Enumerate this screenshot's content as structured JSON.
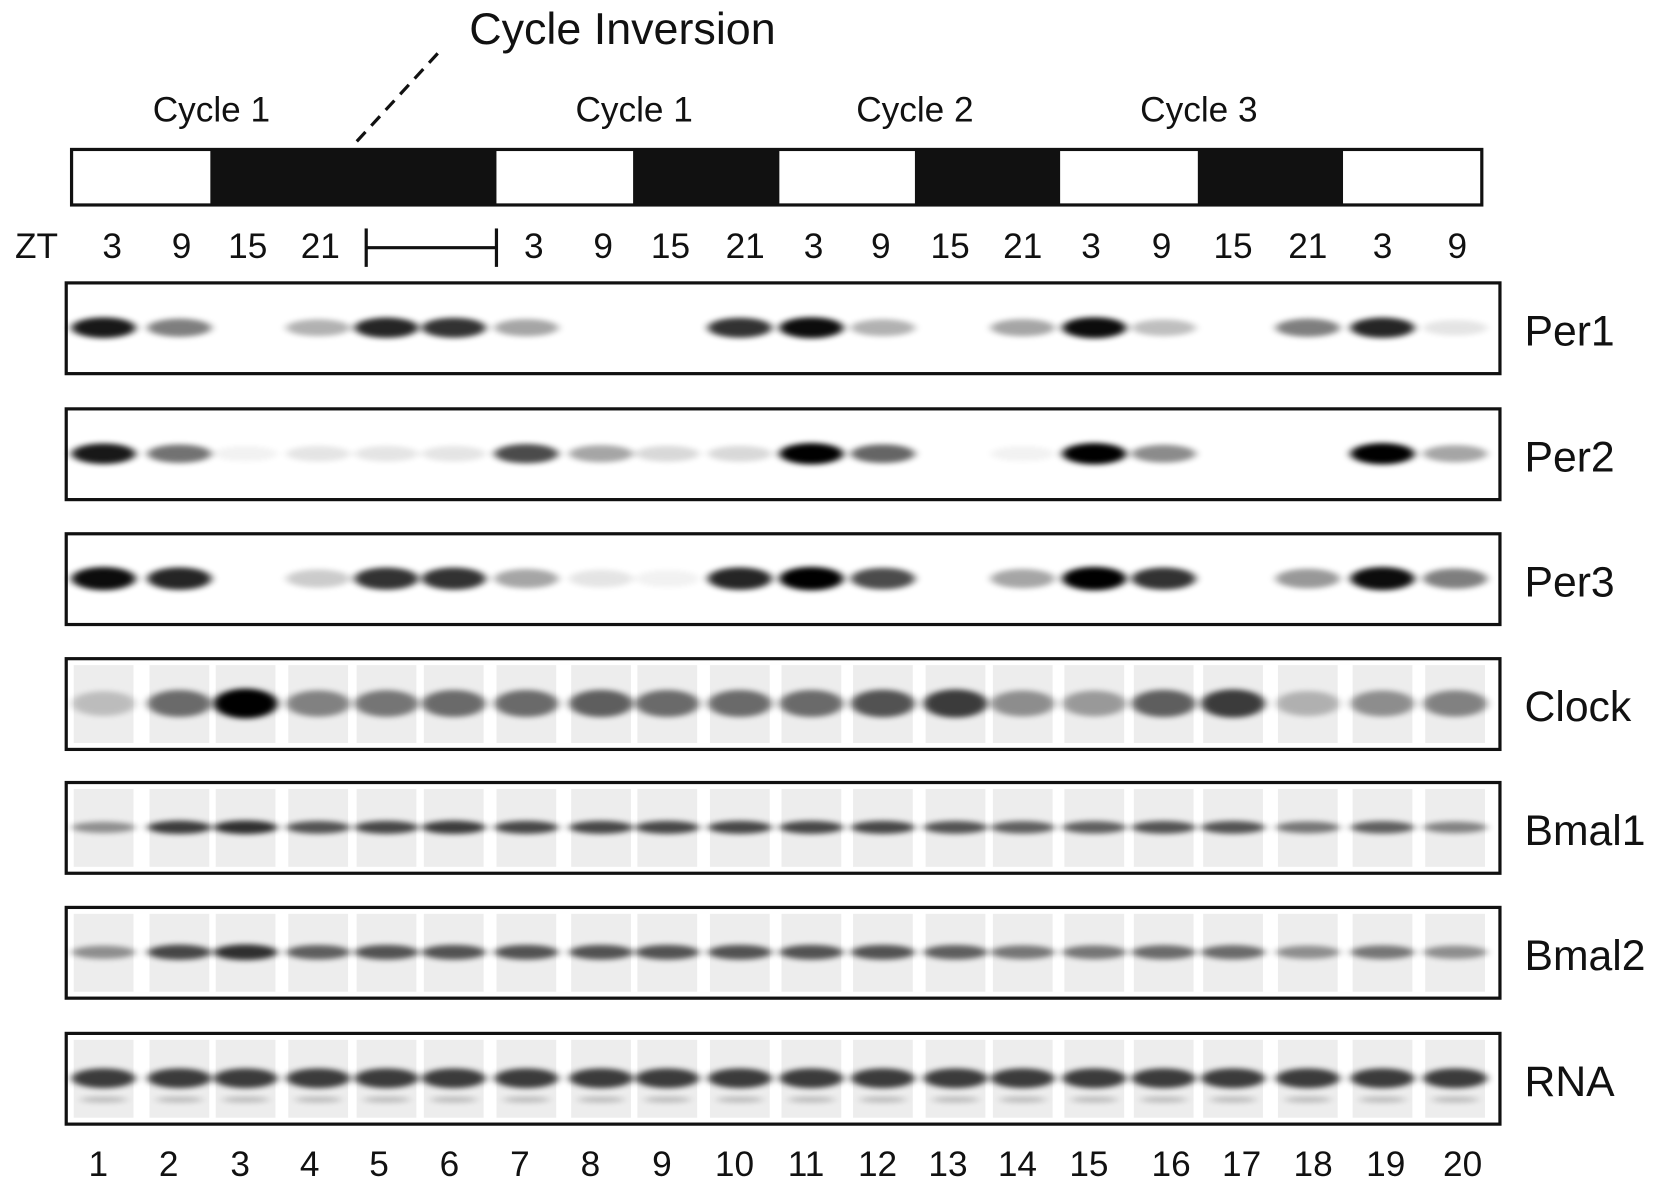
{
  "title": "Cycle Inversion",
  "cycles": [
    "Cycle 1",
    "Cycle 1",
    "Cycle 2",
    "Cycle 3"
  ],
  "zt_label": "ZT",
  "zt": [
    3,
    9,
    15,
    21,
    3,
    9,
    15,
    21,
    3,
    9,
    15,
    21,
    3,
    9,
    15,
    21,
    3,
    9
  ],
  "blots": [
    "Per1",
    "Per2",
    "Per3",
    "Clock",
    "Bmal1",
    "Bmal2",
    "RNA"
  ],
  "lanes": [
    1,
    2,
    3,
    4,
    5,
    6,
    7,
    8,
    9,
    10,
    11,
    12,
    13,
    14,
    15,
    16,
    17,
    18,
    19,
    20
  ]
}
